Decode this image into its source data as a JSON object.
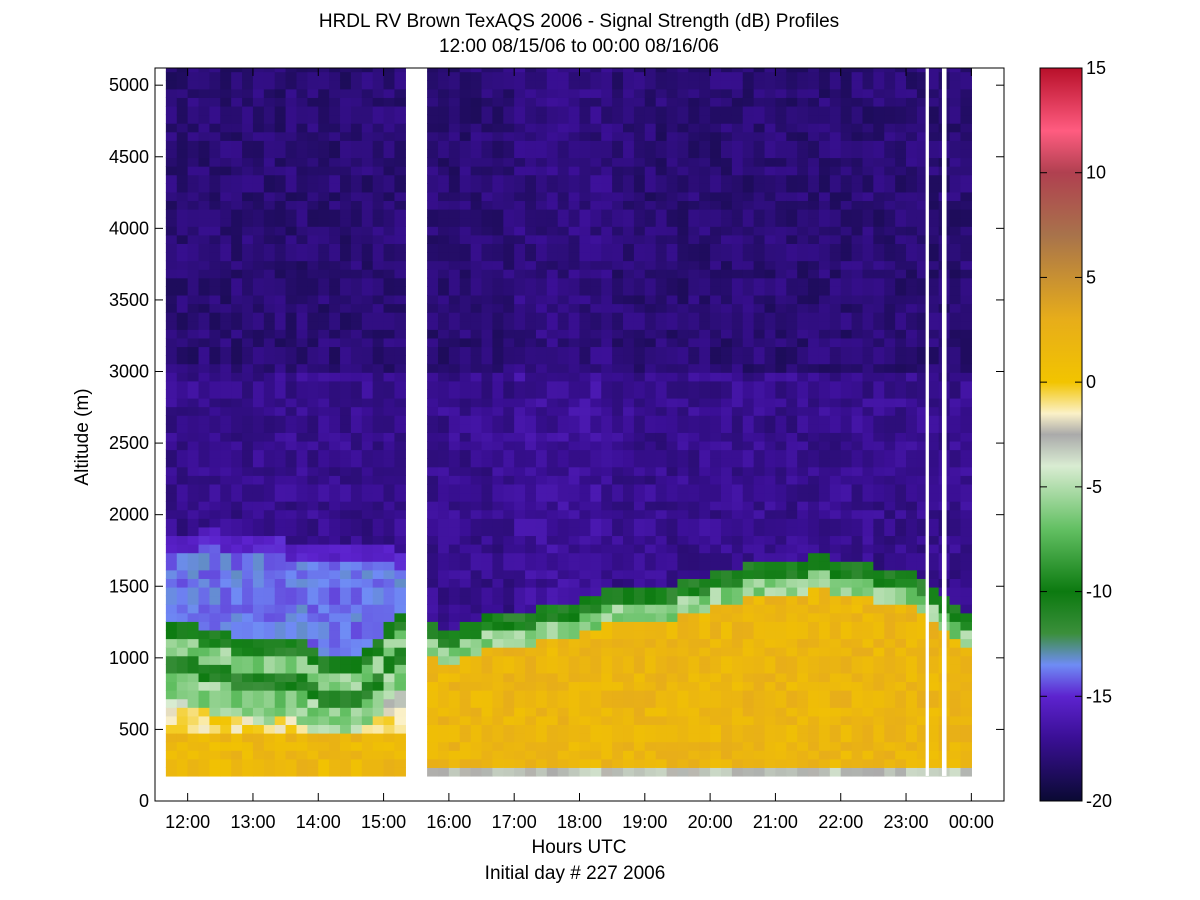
{
  "chart_data": {
    "type": "heatmap",
    "title": "HRDL RV Brown TexAQS 2006 - Signal Strength (dB) Profiles",
    "subtitle": "12:00 08/15/06 to 00:00 08/16/06",
    "xlabel": "Hours UTC",
    "xlabel2": "Initial day # 227  2006",
    "ylabel": "Altitude (m)",
    "x_ticks": [
      "12:00",
      "13:00",
      "14:00",
      "15:00",
      "16:00",
      "17:00",
      "18:00",
      "19:00",
      "20:00",
      "21:00",
      "22:00",
      "23:00",
      "00:00"
    ],
    "y_ticks": [
      "0",
      "500",
      "1000",
      "1500",
      "2000",
      "2500",
      "3000",
      "3500",
      "4000",
      "4500",
      "5000"
    ],
    "xlim_hours": [
      11.5,
      24.5
    ],
    "ylim": [
      0,
      5120
    ],
    "altitude_range": [
      175,
      5120
    ],
    "colorbar": {
      "range": [
        -20,
        15
      ],
      "ticks": [
        "15",
        "10",
        "5",
        "0",
        "-5",
        "-10",
        "-15",
        "-20"
      ]
    },
    "time_hours": [
      11.75,
      11.917,
      12.083,
      12.25,
      12.417,
      12.583,
      12.75,
      12.917,
      13.083,
      13.25,
      13.417,
      13.583,
      13.75,
      13.917,
      14.083,
      14.25,
      14.417,
      14.583,
      14.75,
      14.917,
      15.083,
      15.25,
      15.75,
      15.917,
      16.083,
      16.25,
      16.417,
      16.583,
      16.75,
      16.917,
      17.083,
      17.25,
      17.417,
      17.583,
      17.75,
      17.917,
      18.083,
      18.25,
      18.417,
      18.583,
      18.75,
      18.917,
      19.083,
      19.25,
      19.417,
      19.583,
      19.75,
      19.917,
      20.083,
      20.25,
      20.417,
      20.583,
      20.75,
      20.917,
      21.083,
      21.25,
      21.417,
      21.583,
      21.75,
      21.917,
      22.083,
      22.25,
      22.417,
      22.583,
      22.75,
      22.917,
      23.083,
      23.25,
      23.417,
      23.583,
      23.75,
      23.917
    ],
    "boundary_layer_top_m": [
      1200,
      1200,
      1180,
      1150,
      1120,
      1120,
      1100,
      1080,
      1050,
      1050,
      1080,
      1080,
      1050,
      1000,
      980,
      960,
      950,
      980,
      1030,
      1100,
      1200,
      1250,
      1170,
      1150,
      1130,
      1180,
      1200,
      1230,
      1240,
      1250,
      1270,
      1280,
      1290,
      1300,
      1320,
      1330,
      1370,
      1390,
      1420,
      1430,
      1440,
      1450,
      1450,
      1460,
      1460,
      1470,
      1490,
      1520,
      1540,
      1560,
      1580,
      1590,
      1600,
      1610,
      1620,
      1630,
      1640,
      1650,
      1660,
      1640,
      1620,
      1600,
      1600,
      1580,
      1580,
      1560,
      1540,
      1500,
      1450,
      1380,
      1300,
      1280
    ],
    "residual_layer_top_m": [
      1760,
      1760,
      1760,
      1780,
      1800,
      1760,
      1760,
      1740,
      1720,
      1720,
      1720,
      1700,
      1700,
      1700,
      1680,
      1660,
      1660,
      1680,
      1680,
      1680,
      1660,
      1640
    ],
    "missing_intervals_hours": [
      [
        15.35,
        15.65
      ],
      [
        23.3,
        23.35
      ],
      [
        23.55,
        23.62
      ]
    ],
    "color_scale": [
      {
        "db": -20,
        "color": "#0a0a33"
      },
      {
        "db": -17,
        "color": "#3a0f95"
      },
      {
        "db": -15,
        "color": "#5d23cf"
      },
      {
        "db": -13.5,
        "color": "#6f8cf5"
      },
      {
        "db": -12,
        "color": "#3b8f3b"
      },
      {
        "db": -10,
        "color": "#0c7a10"
      },
      {
        "db": -7,
        "color": "#63c063"
      },
      {
        "db": -4,
        "color": "#d9ecd2"
      },
      {
        "db": -2.5,
        "color": "#aaaaaa"
      },
      {
        "db": -1.5,
        "color": "#fbf1c8"
      },
      {
        "db": 0,
        "color": "#f2c400"
      },
      {
        "db": 3,
        "color": "#e7ad1a"
      },
      {
        "db": 7,
        "color": "#a8734b"
      },
      {
        "db": 10,
        "color": "#b04050"
      },
      {
        "db": 12,
        "color": "#ff5c80"
      },
      {
        "db": 15,
        "color": "#b8102a"
      }
    ]
  }
}
